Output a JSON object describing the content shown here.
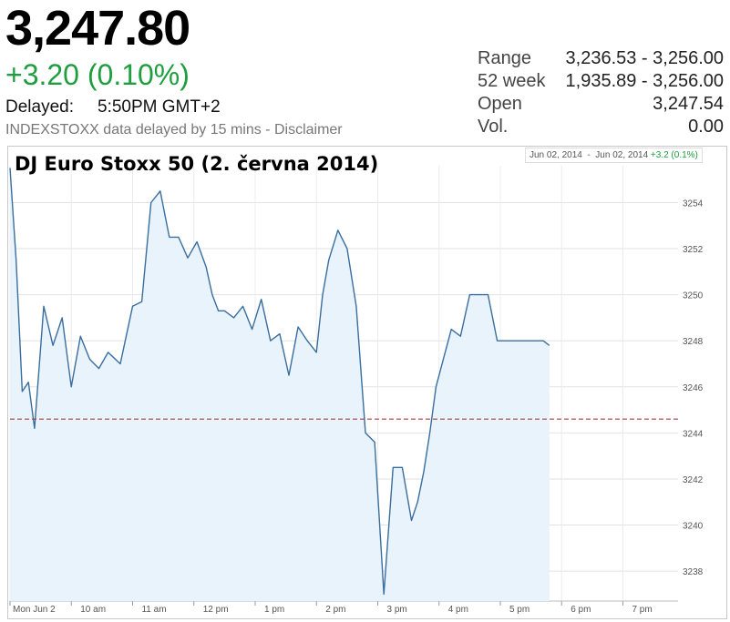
{
  "quote": {
    "price": "3,247.80",
    "change": "+3.20 (0.10%)",
    "delayed_label": "Delayed:",
    "delayed_time": "5:50PM GMT+2",
    "source": "INDEXSTOXX data delayed by 15 mins - Disclaimer"
  },
  "stats": [
    {
      "label": "Range",
      "value": "3,236.53 - 3,256.00"
    },
    {
      "label": "52 week",
      "value": "1,935.89 - 3,256.00"
    },
    {
      "label": "Open",
      "value": "3,247.54"
    },
    {
      "label": "Vol.",
      "value": "0.00"
    }
  ],
  "range_box": {
    "from": "Jun 02, 2014",
    "sep": "-",
    "to": "Jun 02, 2014",
    "change": "+3.2 (0.1%)"
  },
  "colors": {
    "line": "#3a6e9e",
    "area": "#e8f3fc",
    "prev_close": "#a04040",
    "positive": "#1e9e3e"
  },
  "chart_data": {
    "type": "area",
    "title": "DJ Euro Stoxx 50 (2. června 2014)",
    "xlabel": "",
    "ylabel": "",
    "x_ticks": [
      "Mon Jun 2",
      "10 am",
      "11 am",
      "12 pm",
      "1 pm",
      "2 pm",
      "3 pm",
      "4 pm",
      "5 pm",
      "6 pm",
      "7 pm"
    ],
    "y_ticks": [
      3238,
      3240,
      3242,
      3244,
      3246,
      3248,
      3250,
      3252,
      3254
    ],
    "ylim": [
      3236.7,
      3255.6
    ],
    "xlim_hours": [
      9,
      19.9
    ],
    "previous_close": 3244.6,
    "grid": true,
    "series": [
      {
        "x": [
          9.0,
          9.1,
          9.2,
          9.3,
          9.4,
          9.55,
          9.7,
          9.85,
          10.0,
          10.15,
          10.3,
          10.45,
          10.6,
          10.8,
          11.0,
          11.15,
          11.3,
          11.45,
          11.6,
          11.75,
          11.9,
          12.05,
          12.2,
          12.3,
          12.4,
          12.5,
          12.65,
          12.8,
          12.95,
          13.1,
          13.25,
          13.4,
          13.55,
          13.7,
          13.85,
          14.0,
          14.1,
          14.2,
          14.35,
          14.5,
          14.65,
          14.8,
          14.95,
          15.1,
          15.25,
          15.4,
          15.55,
          15.65,
          15.75,
          15.85,
          15.95,
          16.05,
          16.2,
          16.35,
          16.5,
          16.65,
          16.8,
          16.95,
          17.1,
          17.25,
          17.4,
          17.55,
          17.7,
          17.8
        ],
        "values": [
          3255.5,
          3251.5,
          3245.8,
          3246.2,
          3244.2,
          3249.5,
          3247.8,
          3249.0,
          3246.0,
          3248.2,
          3247.2,
          3246.8,
          3247.5,
          3247.0,
          3249.5,
          3249.7,
          3254.0,
          3254.5,
          3252.5,
          3252.5,
          3251.6,
          3252.3,
          3251.2,
          3250.0,
          3249.3,
          3249.3,
          3249.0,
          3249.5,
          3248.5,
          3249.8,
          3248.0,
          3248.3,
          3246.5,
          3248.6,
          3248.0,
          3247.5,
          3250.0,
          3251.5,
          3252.8,
          3252.0,
          3249.5,
          3244.0,
          3243.6,
          3237.0,
          3242.5,
          3242.5,
          3240.2,
          3241.0,
          3242.3,
          3244.0,
          3246.0,
          3247.0,
          3248.5,
          3248.2,
          3250.0,
          3250.0,
          3250.0,
          3248.0,
          3248.0,
          3248.0,
          3248.0,
          3248.0,
          3248.0,
          3247.8
        ]
      }
    ]
  }
}
